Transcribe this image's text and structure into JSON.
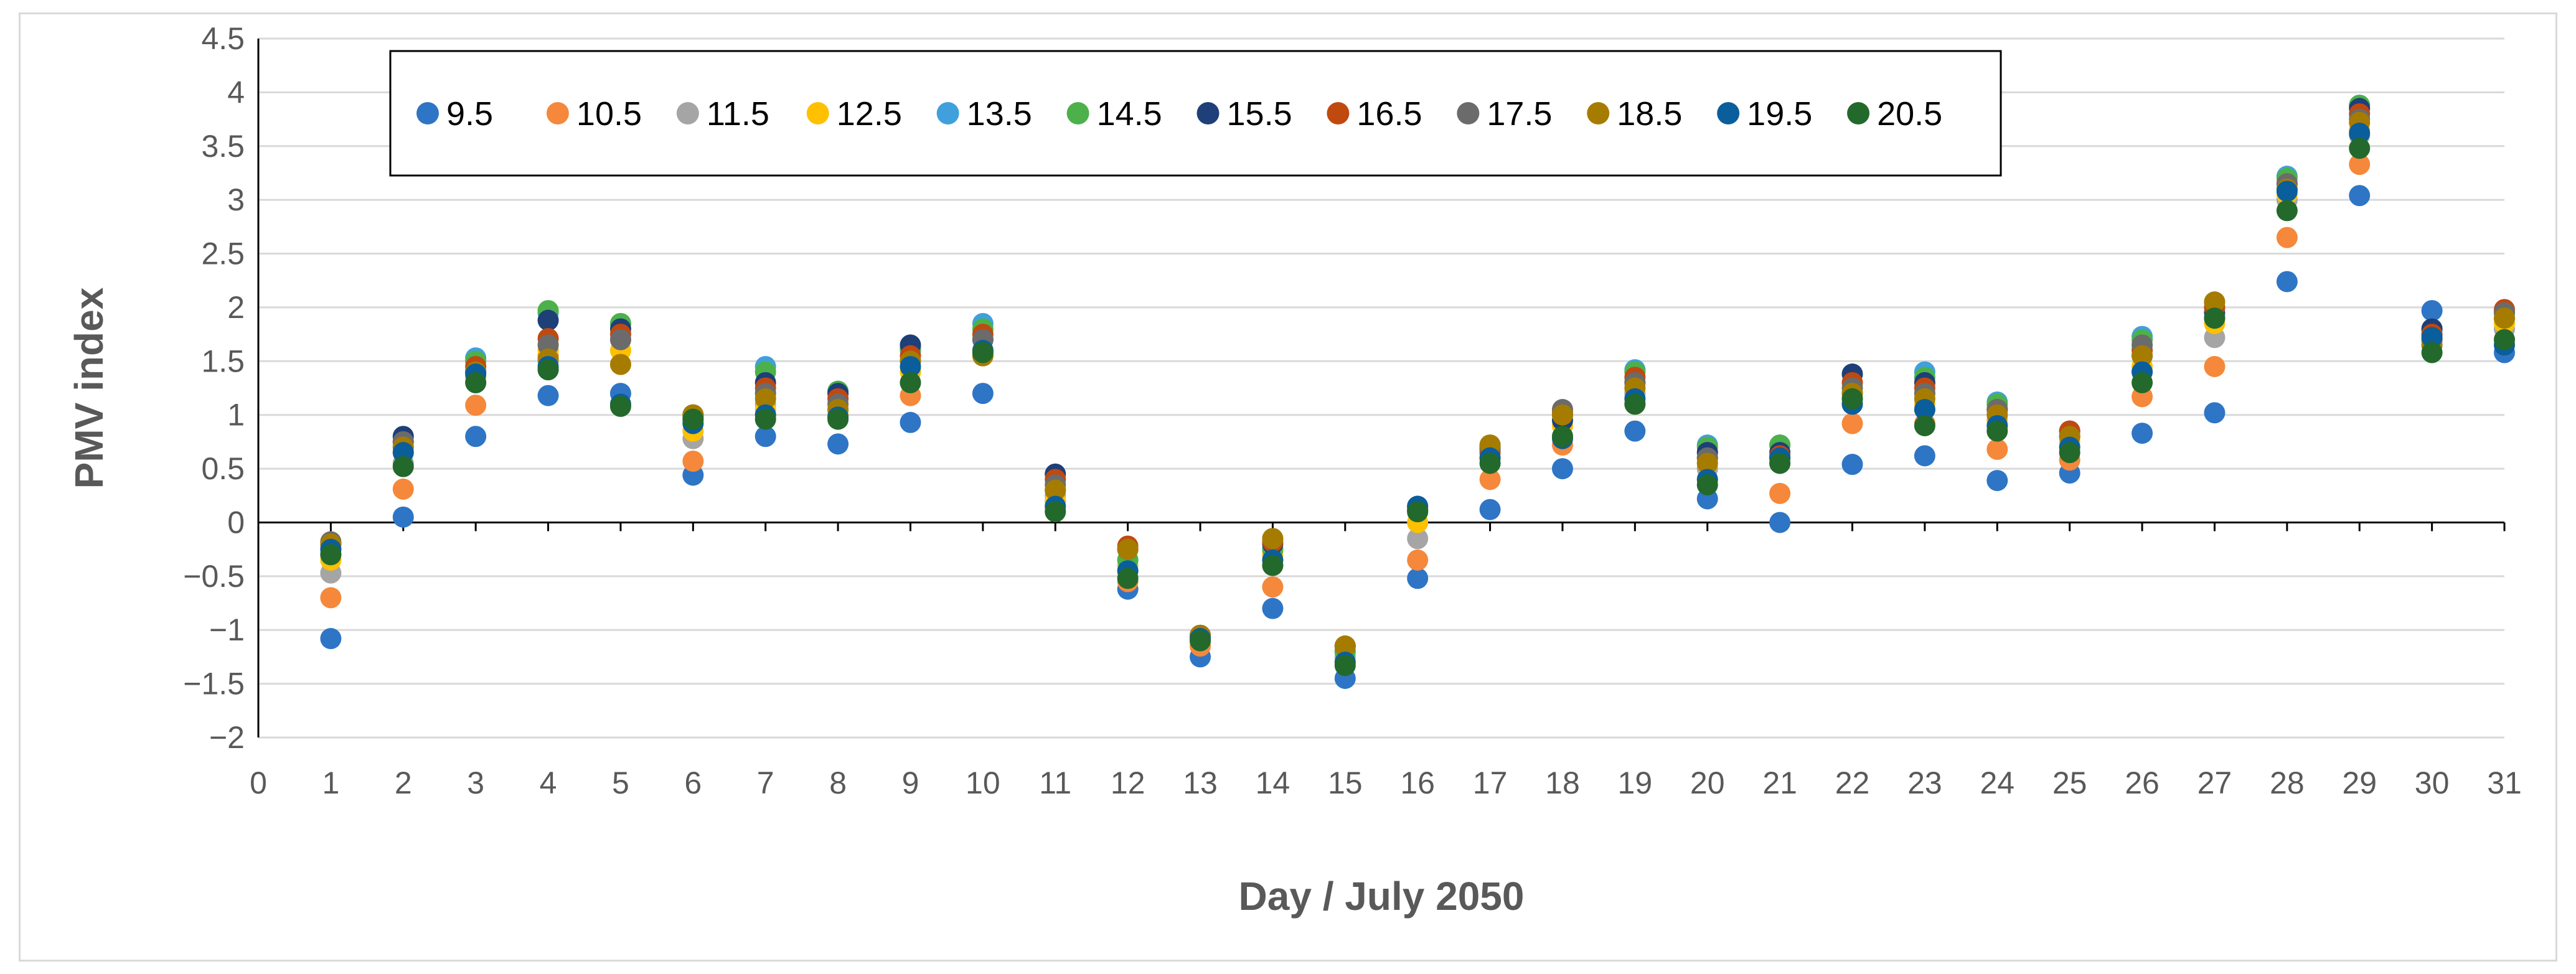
{
  "chart_data": {
    "type": "scatter",
    "title": "",
    "xlabel": "Day / July 2050",
    "ylabel": "PMV index",
    "xlim": [
      0,
      31
    ],
    "ylim": [
      -2,
      4.5
    ],
    "x_ticks": [
      0,
      1,
      2,
      3,
      4,
      5,
      6,
      7,
      8,
      9,
      10,
      11,
      12,
      13,
      14,
      15,
      16,
      17,
      18,
      19,
      20,
      21,
      22,
      23,
      24,
      25,
      26,
      27,
      28,
      29,
      30,
      31
    ],
    "y_ticks": [
      -2,
      -1.5,
      -1,
      -0.5,
      0,
      0.5,
      1,
      1.5,
      2,
      2.5,
      3,
      3.5,
      4,
      4.5
    ],
    "grid": "horizontal",
    "legend_position": "top-inside",
    "x": [
      1,
      2,
      3,
      4,
      5,
      6,
      7,
      8,
      9,
      10,
      11,
      12,
      13,
      14,
      15,
      16,
      17,
      18,
      19,
      20,
      21,
      22,
      23,
      24,
      25,
      26,
      27,
      28,
      29,
      30,
      31
    ],
    "series": [
      {
        "name": "9.5",
        "color": "#2e75c6",
        "values": [
          -1.08,
          0.05,
          0.8,
          1.18,
          1.2,
          0.44,
          0.8,
          0.73,
          0.93,
          1.2,
          0.2,
          -0.62,
          -1.25,
          -0.8,
          -1.45,
          -0.52,
          0.12,
          0.5,
          0.85,
          0.22,
          0.0,
          0.54,
          0.62,
          0.39,
          0.46,
          0.83,
          1.02,
          2.24,
          3.04,
          1.97,
          1.58
        ]
      },
      {
        "name": "10.5",
        "color": "#f5883a",
        "values": [
          -0.7,
          0.31,
          1.09,
          1.55,
          1.47,
          0.57,
          1.0,
          1.0,
          1.18,
          1.55,
          0.15,
          -0.55,
          -1.15,
          -0.6,
          -1.3,
          -0.35,
          0.4,
          0.72,
          1.1,
          0.4,
          0.27,
          0.92,
          0.92,
          0.68,
          0.58,
          1.17,
          1.45,
          2.65,
          3.33,
          1.8,
          1.7
        ]
      },
      {
        "name": "11.5",
        "color": "#a5a5a5",
        "values": [
          -0.47,
          0.55,
          1.3,
          1.5,
          1.7,
          0.78,
          1.1,
          1.05,
          1.3,
          1.6,
          0.25,
          -0.45,
          -1.1,
          -0.35,
          -1.25,
          -0.15,
          0.6,
          0.8,
          1.2,
          0.5,
          0.55,
          1.1,
          1.05,
          0.9,
          0.7,
          1.4,
          1.72,
          3.0,
          3.6,
          1.65,
          1.8
        ]
      },
      {
        "name": "12.5",
        "color": "#ffc000",
        "values": [
          -0.35,
          0.65,
          1.35,
          1.6,
          1.6,
          0.85,
          1.05,
          1.0,
          1.4,
          1.6,
          0.2,
          -0.4,
          -1.05,
          -0.3,
          -1.2,
          0.0,
          0.7,
          0.9,
          1.25,
          0.55,
          0.6,
          1.15,
          1.1,
          0.95,
          0.75,
          1.45,
          1.85,
          3.05,
          3.65,
          1.7,
          1.85
        ]
      },
      {
        "name": "13.5",
        "color": "#40a0dc",
        "values": [
          -0.3,
          0.7,
          1.53,
          1.95,
          1.85,
          0.95,
          1.45,
          1.22,
          1.6,
          1.85,
          0.3,
          -0.35,
          -1.05,
          -0.25,
          -1.2,
          0.1,
          0.72,
          1.0,
          1.42,
          0.72,
          0.72,
          1.2,
          1.4,
          1.12,
          0.8,
          1.73,
          2.0,
          3.22,
          3.88,
          1.8,
          1.9
        ]
      },
      {
        "name": "14.5",
        "color": "#4cb14a",
        "values": [
          -0.25,
          0.75,
          1.5,
          1.97,
          1.85,
          1.0,
          1.4,
          1.22,
          1.62,
          1.8,
          0.3,
          -0.35,
          -1.05,
          -0.25,
          -1.2,
          0.1,
          0.7,
          1.0,
          1.4,
          0.7,
          0.72,
          1.2,
          1.35,
          1.1,
          0.8,
          1.7,
          2.0,
          3.2,
          3.88,
          1.75,
          1.9
        ]
      },
      {
        "name": "15.5",
        "color": "#1e3f78",
        "values": [
          -0.2,
          0.8,
          1.4,
          1.88,
          1.8,
          1.0,
          1.3,
          1.2,
          1.65,
          1.7,
          0.45,
          -0.25,
          -1.05,
          -0.2,
          -1.15,
          0.15,
          0.68,
          0.95,
          1.3,
          0.65,
          0.65,
          1.38,
          1.3,
          1.05,
          0.85,
          1.55,
          1.95,
          3.1,
          3.85,
          1.8,
          1.95
        ]
      },
      {
        "name": "16.5",
        "color": "#c0490f",
        "values": [
          -0.2,
          0.75,
          1.45,
          1.71,
          1.75,
          1.0,
          1.25,
          1.15,
          1.55,
          1.75,
          0.4,
          -0.22,
          -1.05,
          -0.18,
          -1.15,
          0.12,
          0.65,
          1.02,
          1.35,
          0.6,
          0.62,
          1.3,
          1.25,
          1.05,
          0.85,
          1.6,
          2.0,
          3.15,
          3.8,
          1.75,
          1.98
        ]
      },
      {
        "name": "17.5",
        "color": "#6b6b6b",
        "values": [
          -0.18,
          0.75,
          1.4,
          1.65,
          1.7,
          0.98,
          1.2,
          1.1,
          1.5,
          1.7,
          0.35,
          -0.25,
          -1.05,
          -0.15,
          -1.15,
          0.12,
          0.7,
          1.05,
          1.3,
          0.6,
          0.6,
          1.25,
          1.2,
          1.05,
          0.8,
          1.65,
          2.05,
          3.15,
          3.75,
          1.7,
          1.95
        ]
      },
      {
        "name": "18.5",
        "color": "#a67c00",
        "values": [
          -0.2,
          0.7,
          1.4,
          1.52,
          1.47,
          1.0,
          1.15,
          1.05,
          1.5,
          1.55,
          0.3,
          -0.25,
          -1.05,
          -0.15,
          -1.15,
          0.12,
          0.72,
          1.0,
          1.25,
          0.55,
          0.6,
          1.2,
          1.15,
          1.0,
          0.8,
          1.55,
          2.05,
          3.1,
          3.72,
          1.65,
          1.9
        ]
      },
      {
        "name": "19.5",
        "color": "#0a5e9c",
        "values": [
          -0.25,
          0.65,
          1.38,
          1.45,
          1.1,
          0.92,
          1.0,
          0.98,
          1.45,
          1.6,
          0.15,
          -0.45,
          -1.08,
          -0.35,
          -1.3,
          0.15,
          0.6,
          0.78,
          1.15,
          0.4,
          0.6,
          1.1,
          1.05,
          0.9,
          0.7,
          1.4,
          1.9,
          3.08,
          3.62,
          1.72,
          1.65
        ]
      },
      {
        "name": "20.5",
        "color": "#23692b",
        "values": [
          -0.3,
          0.52,
          1.3,
          1.42,
          1.08,
          0.96,
          0.96,
          0.96,
          1.3,
          1.58,
          0.1,
          -0.52,
          -1.1,
          -0.4,
          -1.33,
          0.1,
          0.55,
          0.8,
          1.1,
          0.35,
          0.55,
          1.15,
          0.9,
          0.85,
          0.65,
          1.3,
          1.9,
          2.9,
          3.48,
          1.58,
          1.7
        ]
      }
    ]
  }
}
